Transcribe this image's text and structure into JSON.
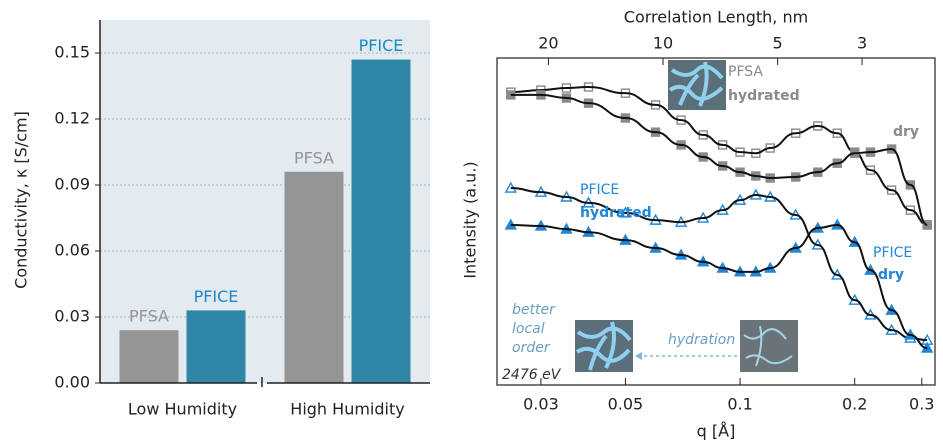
{
  "chart_data": [
    {
      "type": "bar",
      "ylabel": "Conductivity, κ [S/cm]",
      "categories": [
        "Low Humidity",
        "High Humidity"
      ],
      "series": [
        {
          "name": "PFSA",
          "color": "#959595",
          "values": [
            0.024,
            0.096
          ]
        },
        {
          "name": "PFICE",
          "color": "#2f86a6",
          "values": [
            0.033,
            0.147
          ]
        }
      ],
      "ylim": [
        0,
        0.165
      ],
      "yticks": [
        {
          "value": 0,
          "label": "0.00"
        },
        0.03,
        0.06,
        0.09,
        0.12,
        0.15
      ],
      "grid": true,
      "background": "#e3eaf0"
    },
    {
      "type": "scatter",
      "xlabel": "q [Å]",
      "ylabel": "Intensity (a.u.)",
      "x2label": "Correlation Length, nm",
      "log_x": true,
      "xlim": [
        0.023,
        0.325
      ],
      "xticks": [
        0.03,
        0.05,
        0.1,
        0.2,
        0.3
      ],
      "x2lim": [
        27.3,
        1.93
      ],
      "x2ticks": [
        20,
        10,
        5,
        3
      ],
      "ylim": [
        0,
        9.48
      ],
      "line_color": "#111111",
      "x": [
        0.025,
        0.03,
        0.035,
        0.04,
        0.05,
        0.06,
        0.07,
        0.08,
        0.09,
        0.1,
        0.11,
        0.12,
        0.14,
        0.16,
        0.18,
        0.2,
        0.22,
        0.25,
        0.28,
        0.31
      ],
      "series": [
        {
          "color": "#8a8a8a",
          "marker": "square-open",
          "values": [
            8.49,
            8.55,
            8.61,
            8.64,
            8.46,
            8.12,
            7.68,
            7.25,
            6.96,
            6.75,
            6.72,
            6.87,
            7.3,
            7.51,
            7.3,
            6.75,
            6.23,
            5.65,
            5.07,
            4.64
          ]
        },
        {
          "color": "#8a8a8a",
          "marker": "square",
          "values": [
            8.41,
            8.41,
            8.32,
            8.17,
            7.74,
            7.33,
            6.96,
            6.61,
            6.35,
            6.17,
            6.06,
            6.0,
            6.03,
            6.17,
            6.43,
            6.72,
            6.75,
            6.84,
            5.8,
            4.64
          ]
        },
        {
          "color": "#1f86d8",
          "marker": "triangle-open",
          "values": [
            5.71,
            5.59,
            5.45,
            5.28,
            4.99,
            4.78,
            4.72,
            4.84,
            5.07,
            5.36,
            5.51,
            5.45,
            4.93,
            4.06,
            3.19,
            2.46,
            2.03,
            1.59,
            1.36,
            1.3
          ]
        },
        {
          "color": "#1f86d8",
          "marker": "triangle",
          "values": [
            4.64,
            4.61,
            4.52,
            4.43,
            4.2,
            3.97,
            3.77,
            3.57,
            3.39,
            3.28,
            3.28,
            3.39,
            3.97,
            4.55,
            4.64,
            4.14,
            3.33,
            2.17,
            1.45,
            1.07
          ]
        }
      ],
      "annotations": [
        "PFSA",
        "hydrated",
        "dry",
        "PFICE",
        "hydrated",
        "PFICE",
        "dry",
        "better",
        "local",
        "order",
        "hydration",
        "2476 eV"
      ]
    }
  ]
}
